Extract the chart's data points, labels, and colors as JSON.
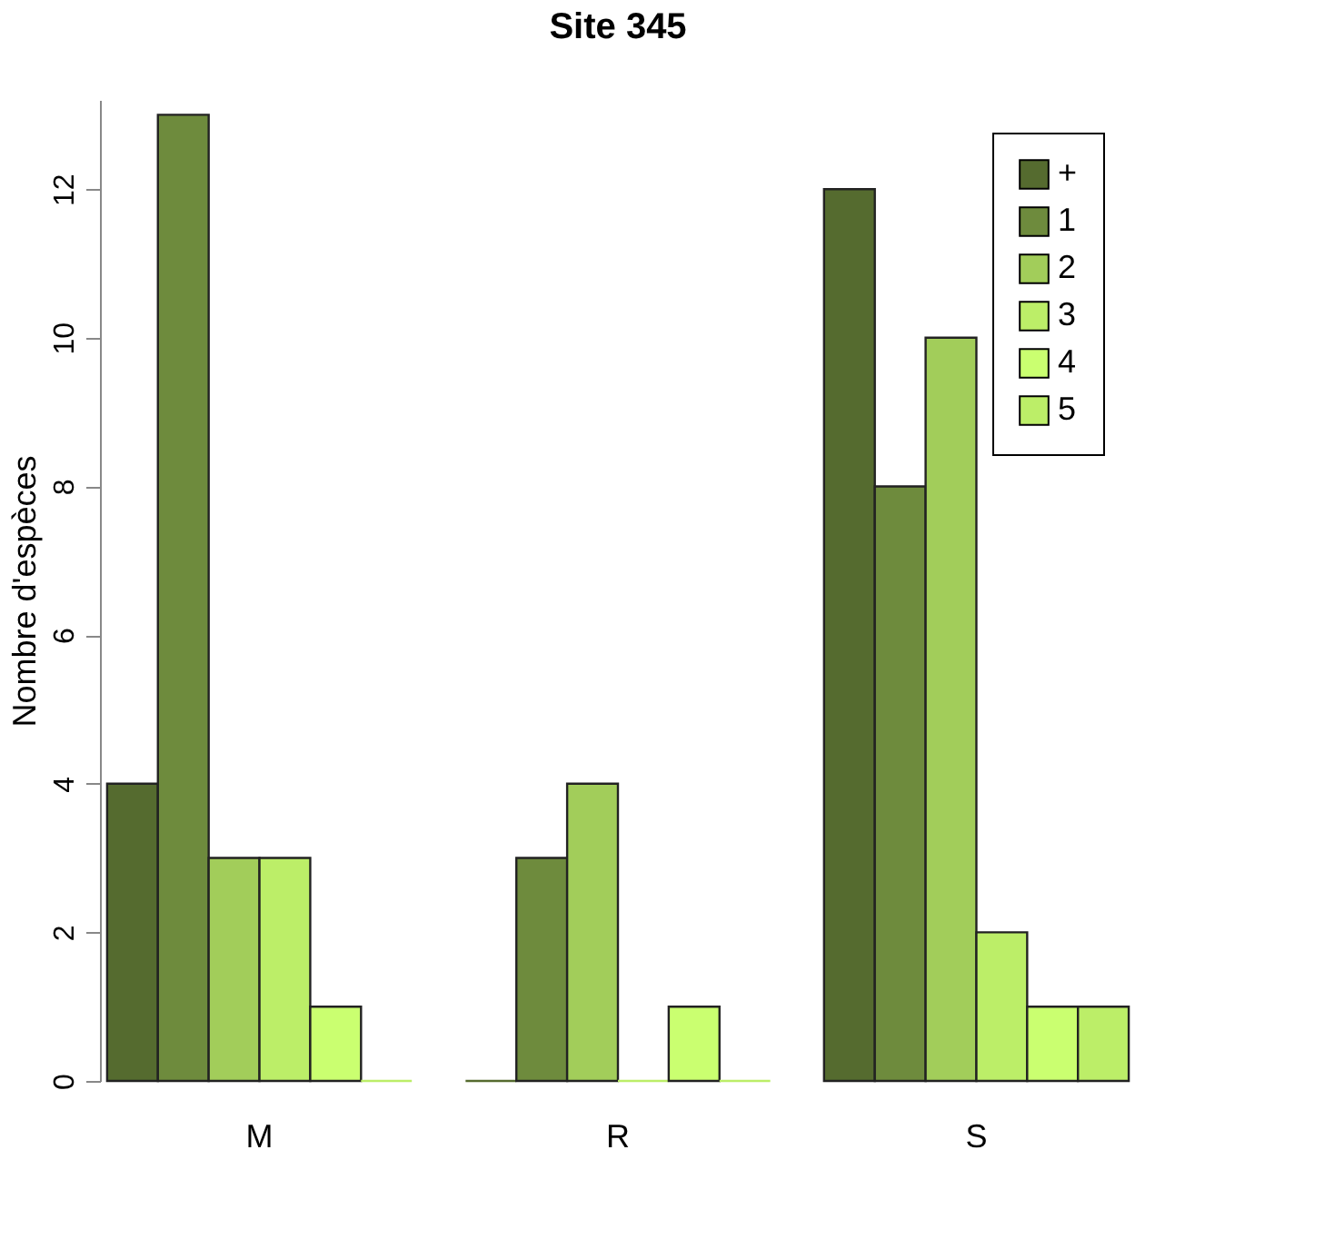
{
  "chart_data": {
    "type": "bar",
    "title": "Site 345",
    "ylabel": "Nombre d'espèces",
    "categories": [
      "M",
      "R",
      "S"
    ],
    "series": [
      {
        "name": "+",
        "color": "#556b2f",
        "values": [
          4,
          0,
          12
        ]
      },
      {
        "name": "1",
        "color": "#6e8b3d",
        "values": [
          13,
          3,
          8
        ]
      },
      {
        "name": "2",
        "color": "#a2cd5a",
        "values": [
          3,
          4,
          10
        ]
      },
      {
        "name": "3",
        "color": "#bcee68",
        "values": [
          3,
          0,
          2
        ]
      },
      {
        "name": "4",
        "color": "#caff70",
        "values": [
          1,
          1,
          1
        ]
      },
      {
        "name": "5",
        "color": "#bcee68",
        "values": [
          0,
          0,
          1
        ]
      }
    ],
    "ylim": [
      0,
      13.2
    ],
    "yticks": [
      0,
      2,
      4,
      6,
      8,
      10,
      12
    ],
    "grid": false,
    "legend": "top right"
  }
}
